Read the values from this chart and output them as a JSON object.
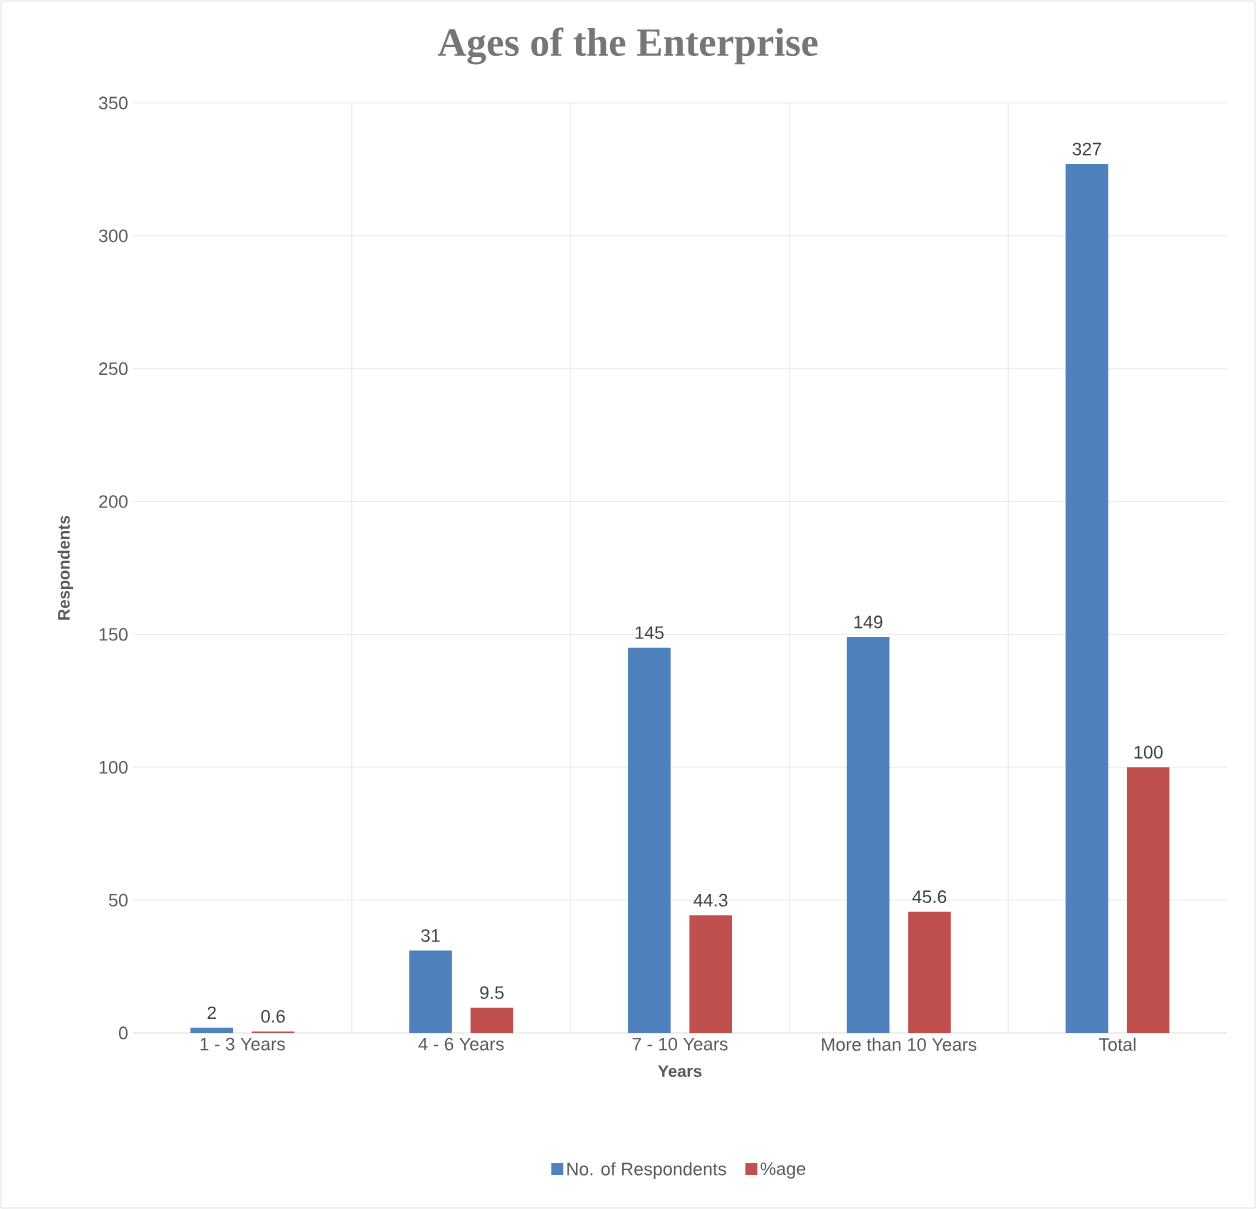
{
  "chart_data": {
    "type": "bar",
    "title": "Ages of the Enterprise",
    "xlabel": "Years",
    "ylabel": "Respondents",
    "categories": [
      "1 - 3 Years",
      "4 - 6 Years",
      "7 - 10 Years",
      "More than 10 Years",
      "Total"
    ],
    "series": [
      {
        "name": "No. of Respondents",
        "color": "#4f81bd",
        "values": [
          2,
          31,
          145,
          149,
          327
        ]
      },
      {
        "name": "%age",
        "color": "#c0504d",
        "values": [
          0.6,
          9.5,
          44.3,
          45.6,
          100
        ]
      }
    ],
    "ylim": [
      0,
      350
    ],
    "yticks": [
      0,
      50,
      100,
      150,
      200,
      250,
      300,
      350
    ],
    "grid": true,
    "legend": "bottom",
    "data_labels": true
  }
}
